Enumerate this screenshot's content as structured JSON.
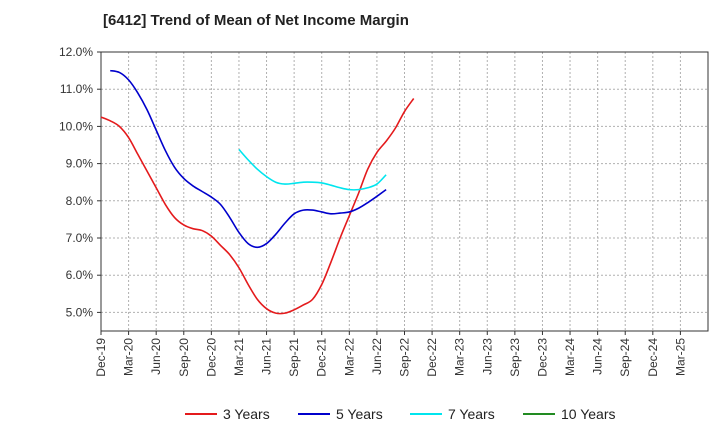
{
  "chart_data": {
    "type": "line",
    "title": "[6412]  Trend of Mean of Net Income Margin",
    "xlabel": "",
    "ylabel": "",
    "ylim": [
      4.5,
      12.0
    ],
    "yticks": [
      5.0,
      6.0,
      7.0,
      8.0,
      9.0,
      10.0,
      11.0,
      12.0
    ],
    "ytick_labels": [
      "5.0%",
      "6.0%",
      "7.0%",
      "8.0%",
      "9.0%",
      "10.0%",
      "11.0%",
      "12.0%"
    ],
    "x_tick_labels": [
      "Dec-19",
      "Mar-20",
      "Jun-20",
      "Sep-20",
      "Dec-20",
      "Mar-21",
      "Jun-21",
      "Sep-21",
      "Dec-21",
      "Mar-22",
      "Jun-22",
      "Sep-22",
      "Dec-22",
      "Mar-23",
      "Jun-23",
      "Sep-23",
      "Dec-23",
      "Mar-24",
      "Jun-24",
      "Sep-24",
      "Dec-24",
      "Mar-25"
    ],
    "grid": true,
    "legend_position": "bottom",
    "series": [
      {
        "name": "3 Years",
        "color": "#e41a1c",
        "points": [
          [
            0,
            10.25
          ],
          [
            1,
            10.15
          ],
          [
            2,
            10.0
          ],
          [
            3,
            9.7
          ],
          [
            4,
            9.25
          ],
          [
            5,
            8.8
          ],
          [
            6,
            8.35
          ],
          [
            7,
            7.9
          ],
          [
            8,
            7.55
          ],
          [
            9,
            7.35
          ],
          [
            10,
            7.25
          ],
          [
            11,
            7.2
          ],
          [
            12,
            7.05
          ],
          [
            13,
            6.8
          ],
          [
            14,
            6.55
          ],
          [
            15,
            6.2
          ],
          [
            16,
            5.75
          ],
          [
            17,
            5.35
          ],
          [
            18,
            5.1
          ],
          [
            19,
            4.98
          ],
          [
            20,
            4.98
          ],
          [
            21,
            5.07
          ],
          [
            22,
            5.2
          ],
          [
            23,
            5.35
          ],
          [
            24,
            5.75
          ],
          [
            25,
            6.35
          ],
          [
            26,
            7.0
          ],
          [
            27,
            7.6
          ],
          [
            28,
            8.2
          ],
          [
            29,
            8.85
          ],
          [
            30,
            9.3
          ],
          [
            31,
            9.6
          ],
          [
            32,
            9.95
          ],
          [
            33,
            10.4
          ],
          [
            34,
            10.75
          ]
        ]
      },
      {
        "name": "5 Years",
        "color": "#0000cc",
        "points": [
          [
            1,
            11.5
          ],
          [
            2,
            11.45
          ],
          [
            3,
            11.25
          ],
          [
            4,
            10.9
          ],
          [
            5,
            10.45
          ],
          [
            6,
            9.9
          ],
          [
            7,
            9.35
          ],
          [
            8,
            8.9
          ],
          [
            9,
            8.6
          ],
          [
            10,
            8.4
          ],
          [
            11,
            8.25
          ],
          [
            12,
            8.1
          ],
          [
            13,
            7.9
          ],
          [
            14,
            7.55
          ],
          [
            15,
            7.15
          ],
          [
            16,
            6.85
          ],
          [
            17,
            6.75
          ],
          [
            18,
            6.85
          ],
          [
            19,
            7.1
          ],
          [
            20,
            7.4
          ],
          [
            21,
            7.65
          ],
          [
            22,
            7.75
          ],
          [
            23,
            7.75
          ],
          [
            24,
            7.7
          ],
          [
            25,
            7.65
          ],
          [
            26,
            7.67
          ],
          [
            27,
            7.7
          ],
          [
            28,
            7.8
          ],
          [
            29,
            7.95
          ],
          [
            30,
            8.12
          ],
          [
            31,
            8.3
          ]
        ]
      },
      {
        "name": "7 Years",
        "color": "#00e5ee",
        "points": [
          [
            15,
            9.38
          ],
          [
            16,
            9.1
          ],
          [
            17,
            8.85
          ],
          [
            18,
            8.65
          ],
          [
            19,
            8.5
          ],
          [
            20,
            8.45
          ],
          [
            21,
            8.47
          ],
          [
            22,
            8.5
          ],
          [
            23,
            8.5
          ],
          [
            24,
            8.48
          ],
          [
            25,
            8.42
          ],
          [
            26,
            8.35
          ],
          [
            27,
            8.3
          ],
          [
            28,
            8.3
          ],
          [
            29,
            8.35
          ],
          [
            30,
            8.45
          ],
          [
            31,
            8.7
          ]
        ]
      },
      {
        "name": "10 Years",
        "color": "#228b22",
        "points": []
      }
    ]
  }
}
